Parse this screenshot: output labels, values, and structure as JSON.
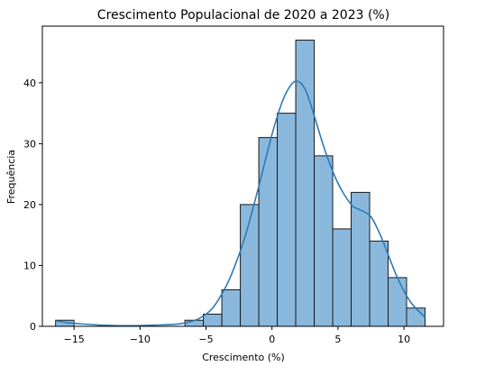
{
  "chart_data": {
    "type": "bar",
    "title": "Crescimento Populacional de 2020 a 2023 (%)",
    "xlabel": "Crescimento (%)",
    "ylabel": "Frequência",
    "xlim": [
      -17.4,
      13.0
    ],
    "ylim": [
      0,
      49.3
    ],
    "grid": false,
    "legend": "none",
    "xticks": [
      -15,
      -10,
      -5,
      0,
      5,
      10
    ],
    "xtick_labels": [
      "−15",
      "−10",
      "−5",
      "0",
      "5",
      "10"
    ],
    "yticks": [
      0,
      10,
      20,
      30,
      40
    ],
    "ytick_labels": [
      "0",
      "10",
      "20",
      "30",
      "40"
    ],
    "bar_fill": "#8ab8dd",
    "bar_edge": "#1a1a1a",
    "kde_color": "#2c7bb6",
    "bins": [
      {
        "start": -16.4,
        "end": -15.0,
        "count": 1
      },
      {
        "start": -15.0,
        "end": -13.6,
        "count": 0
      },
      {
        "start": -13.6,
        "end": -12.2,
        "count": 0
      },
      {
        "start": -12.2,
        "end": -10.8,
        "count": 0
      },
      {
        "start": -10.8,
        "end": -9.4,
        "count": 0
      },
      {
        "start": -9.4,
        "end": -8.0,
        "count": 0
      },
      {
        "start": -8.0,
        "end": -6.6,
        "count": 0
      },
      {
        "start": -6.6,
        "end": -5.2,
        "count": 1
      },
      {
        "start": -5.2,
        "end": -3.8,
        "count": 2
      },
      {
        "start": -3.8,
        "end": -2.4,
        "count": 6
      },
      {
        "start": -2.4,
        "end": -1.0,
        "count": 20
      },
      {
        "start": -1.0,
        "end": 0.4,
        "count": 31
      },
      {
        "start": 0.4,
        "end": 1.8,
        "count": 35
      },
      {
        "start": 1.8,
        "end": 3.2,
        "count": 47
      },
      {
        "start": 3.2,
        "end": 4.6,
        "count": 28
      },
      {
        "start": 4.6,
        "end": 6.0,
        "count": 16
      },
      {
        "start": 6.0,
        "end": 7.4,
        "count": 22
      },
      {
        "start": 7.4,
        "end": 8.8,
        "count": 14
      },
      {
        "start": 8.8,
        "end": 10.2,
        "count": 8
      },
      {
        "start": 10.2,
        "end": 11.6,
        "count": 3
      }
    ],
    "kde": {
      "x": [
        -16.4,
        -15.5,
        -14.5,
        -13.0,
        -11.0,
        -9.0,
        -7.5,
        -6.5,
        -5.5,
        -4.5,
        -3.5,
        -2.8,
        -2.0,
        -1.0,
        0.0,
        0.8,
        1.5,
        2.0,
        2.5,
        3.0,
        4.0,
        5.0,
        6.0,
        6.5,
        7.0,
        7.5,
        8.0,
        8.5,
        9.5,
        10.5,
        11.6
      ],
      "y": [
        0.9,
        0.6,
        0.4,
        0.2,
        0.1,
        0.2,
        0.3,
        0.6,
        1.3,
        3.0,
        6.5,
        10.0,
        15.0,
        23.0,
        31.5,
        37.0,
        39.8,
        40.2,
        39.0,
        36.0,
        29.0,
        23.5,
        20.0,
        19.3,
        18.8,
        18.0,
        16.0,
        13.5,
        8.0,
        4.0,
        1.5
      ]
    }
  }
}
